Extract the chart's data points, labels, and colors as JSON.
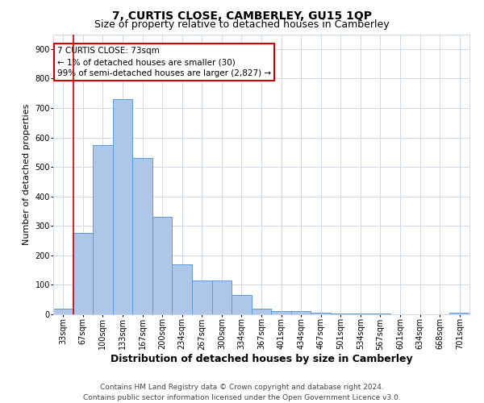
{
  "title": "7, CURTIS CLOSE, CAMBERLEY, GU15 1QP",
  "subtitle": "Size of property relative to detached houses in Camberley",
  "xlabel": "Distribution of detached houses by size in Camberley",
  "ylabel": "Number of detached properties",
  "categories": [
    "33sqm",
    "67sqm",
    "100sqm",
    "133sqm",
    "167sqm",
    "200sqm",
    "234sqm",
    "267sqm",
    "300sqm",
    "334sqm",
    "367sqm",
    "401sqm",
    "434sqm",
    "467sqm",
    "501sqm",
    "534sqm",
    "567sqm",
    "601sqm",
    "634sqm",
    "668sqm",
    "701sqm"
  ],
  "bar_values": [
    20,
    275,
    575,
    730,
    530,
    330,
    170,
    115,
    115,
    65,
    20,
    12,
    10,
    5,
    4,
    3,
    2,
    1,
    0,
    0,
    5
  ],
  "bar_color": "#aec6e8",
  "bar_edge_color": "#5b9bd5",
  "annotation_box_text": "7 CURTIS CLOSE: 73sqm\n← 1% of detached houses are smaller (30)\n99% of semi-detached houses are larger (2,827) →",
  "annotation_box_color": "#ffffff",
  "annotation_box_edge_color": "#cc0000",
  "vline_color": "#cc0000",
  "vline_x_bin": 1,
  "ylim": [
    0,
    950
  ],
  "yticks": [
    0,
    100,
    200,
    300,
    400,
    500,
    600,
    700,
    800,
    900
  ],
  "grid_color": "#d0d8e8",
  "bg_color": "#ffffff",
  "footnote": "Contains HM Land Registry data © Crown copyright and database right 2024.\nContains public sector information licensed under the Open Government Licence v3.0.",
  "title_fontsize": 10,
  "subtitle_fontsize": 9,
  "xlabel_fontsize": 9,
  "ylabel_fontsize": 8,
  "tick_fontsize": 7,
  "annotation_fontsize": 7.5,
  "footnote_fontsize": 6.5
}
